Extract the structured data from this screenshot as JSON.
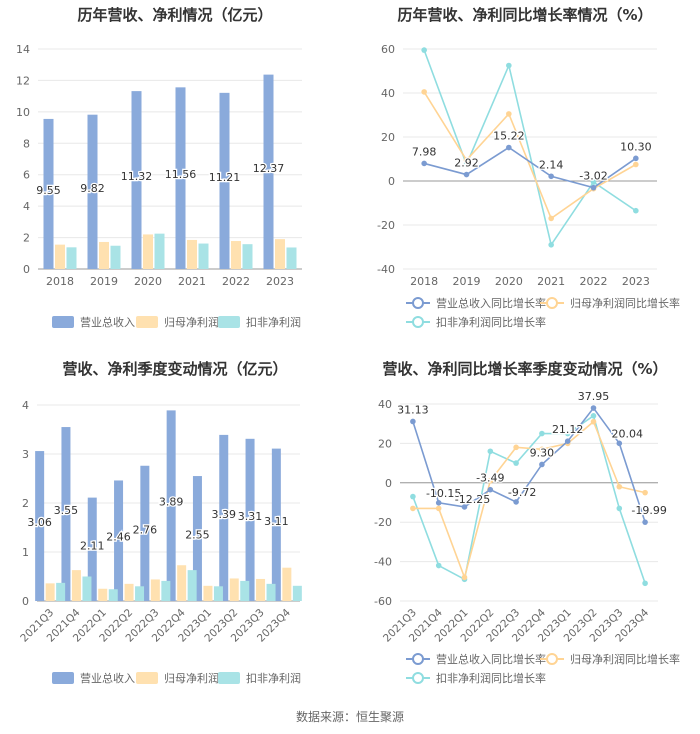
{
  "source": "数据来源：恒生聚源",
  "colors": {
    "revenue": "#8aaadb",
    "net_profit": "#ffe1b0",
    "deducted": "#a9e3e6",
    "line_revenue": "#7b9bd1",
    "line_net": "#ffd494",
    "line_deducted": "#8fdde0",
    "axis": "#999999",
    "grid": "#e8e8e8"
  },
  "chart_data": [
    {
      "type": "bar",
      "title": "历年营收、净利情况（亿元）",
      "categories": [
        "2018",
        "2019",
        "2020",
        "2021",
        "2022",
        "2023"
      ],
      "ylim": [
        0,
        14
      ],
      "yticks": [
        0,
        2,
        4,
        6,
        8,
        10,
        12,
        14
      ],
      "series": [
        {
          "name": "营业总收入",
          "values": [
            9.55,
            9.82,
            11.32,
            11.56,
            11.21,
            12.37
          ],
          "labels": [
            "9.55",
            "9.82",
            "11.32",
            "11.56",
            "11.21",
            "12.37"
          ]
        },
        {
          "name": "归母净利润",
          "values": [
            1.55,
            1.72,
            2.2,
            1.85,
            1.78,
            1.9
          ]
        },
        {
          "name": "扣非净利润",
          "values": [
            1.38,
            1.48,
            2.25,
            1.62,
            1.58,
            1.37
          ]
        }
      ],
      "legend": [
        "营业总收入",
        "归母净利润",
        "扣非净利润"
      ]
    },
    {
      "type": "line",
      "title": "历年营收、净利同比增长率情况（%）",
      "categories": [
        "2018",
        "2019",
        "2020",
        "2021",
        "2022",
        "2023"
      ],
      "ylim": [
        -40,
        60
      ],
      "yticks": [
        -40,
        -20,
        0,
        20,
        40,
        60
      ],
      "series": [
        {
          "name": "营业总收入同比增长率",
          "values": [
            7.98,
            2.92,
            15.22,
            2.14,
            -3.02,
            10.3
          ],
          "labels": [
            "7.98",
            "2.92",
            "15.22",
            "2.14",
            "-3.02",
            "10.30"
          ]
        },
        {
          "name": "归母净利润同比增长率",
          "values": [
            40.5,
            9.5,
            30.5,
            -17,
            -3.5,
            7.5
          ]
        },
        {
          "name": "扣非净利润同比增长率",
          "values": [
            59.5,
            7.5,
            52.5,
            -29,
            -0.5,
            -13.5
          ]
        }
      ],
      "legend": [
        "营业总收入同比增长率",
        "归母净利润同比增长率",
        "扣非净利润同比增长率"
      ]
    },
    {
      "type": "bar",
      "title": "营收、净利季度变动情况（亿元）",
      "categories": [
        "2021Q3",
        "2021Q4",
        "2022Q1",
        "2022Q2",
        "2022Q3",
        "2022Q4",
        "2023Q1",
        "2023Q2",
        "2023Q3",
        "2023Q4"
      ],
      "ylim": [
        0,
        4
      ],
      "yticks": [
        0,
        1,
        2,
        3,
        4
      ],
      "series": [
        {
          "name": "营业总收入",
          "values": [
            3.06,
            3.55,
            2.11,
            2.46,
            2.76,
            3.89,
            2.55,
            3.39,
            3.31,
            3.11
          ],
          "labels": [
            "3.06",
            "3.55",
            "2.11",
            "2.46",
            "2.76",
            "3.89",
            "2.55",
            "3.39",
            "3.31",
            "3.11"
          ]
        },
        {
          "name": "归母净利润",
          "values": [
            0.36,
            0.63,
            0.25,
            0.35,
            0.44,
            0.73,
            0.31,
            0.46,
            0.45,
            0.68
          ]
        },
        {
          "name": "扣非净利润",
          "values": [
            0.37,
            0.5,
            0.24,
            0.3,
            0.41,
            0.63,
            0.3,
            0.41,
            0.35,
            0.31
          ]
        }
      ],
      "legend": [
        "营业总收入",
        "归母净利润",
        "扣非净利润"
      ]
    },
    {
      "type": "line",
      "title": "营收、净利同比增长率季度变动情况（%）",
      "categories": [
        "2021Q3",
        "2021Q4",
        "2022Q1",
        "2022Q2",
        "2022Q3",
        "2022Q4",
        "2023Q1",
        "2023Q2",
        "2023Q3",
        "2023Q4"
      ],
      "ylim": [
        -60,
        40
      ],
      "yticks": [
        -60,
        -40,
        -20,
        0,
        20,
        40
      ],
      "series": [
        {
          "name": "营业总收入同比增长率",
          "values": [
            31.13,
            -10.15,
            -12.25,
            -3.49,
            -9.72,
            9.3,
            21.12,
            37.95,
            20.04,
            -19.99
          ],
          "labels": [
            "31.13",
            "-10.15",
            "-12.25",
            "-3.49",
            "-9.72",
            "9.30",
            "21.12",
            "37.95",
            "20.04",
            "-19.99"
          ]
        },
        {
          "name": "归母净利润同比增长率",
          "values": [
            -13,
            -13,
            -48,
            1,
            18,
            17,
            20,
            31,
            -2,
            -5
          ]
        },
        {
          "name": "扣非净利润同比增长率",
          "values": [
            -7,
            -42,
            -49,
            16,
            10,
            25,
            25,
            34,
            -13,
            -51
          ]
        }
      ],
      "legend": [
        "营业总收入同比增长率",
        "归母净利润同比增长率",
        "扣非净利润同比增长率"
      ]
    }
  ]
}
